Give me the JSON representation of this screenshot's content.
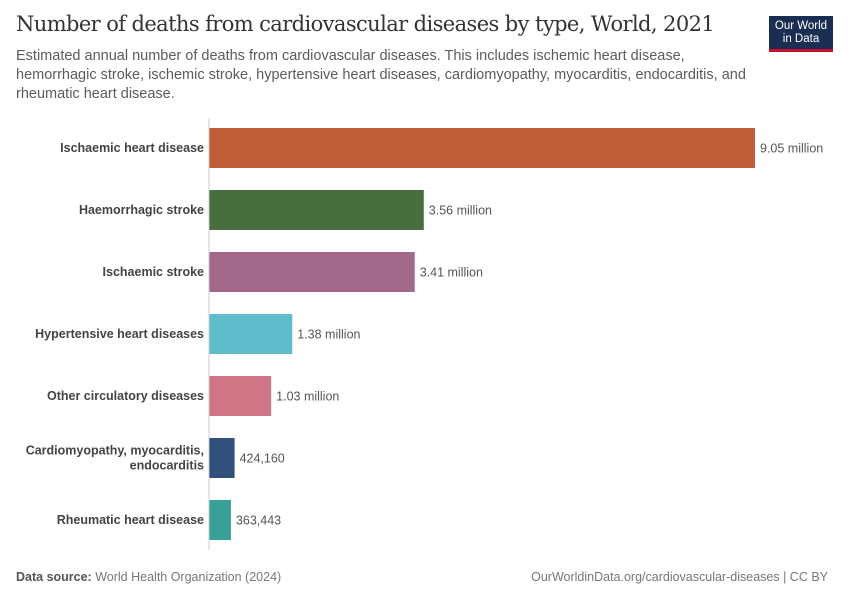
{
  "header": {
    "title": "Number of deaths from cardiovascular diseases by type, World, 2021",
    "subtitle": "Estimated annual number of deaths from cardiovascular diseases. This includes ischemic heart disease, hemorrhagic stroke, ischemic stroke, hypertensive heart diseases, cardiomyopathy, myocarditis, endocarditis, and rheumatic heart disease.",
    "logo_line1": "Our World",
    "logo_line2": "in Data"
  },
  "footer": {
    "source_label": "Data source:",
    "source_value": "World Health Organization (2024)",
    "url": "OurWorldinData.org/cardiovascular-diseases | CC BY"
  },
  "chart_data": {
    "type": "bar",
    "orientation": "horizontal",
    "title": "Number of deaths from cardiovascular diseases by type, World, 2021",
    "categories": [
      "Ischaemic heart disease",
      "Haemorrhagic stroke",
      "Ischaemic stroke",
      "Hypertensive heart diseases",
      "Other circulatory diseases",
      "Cardiomyopathy, myocarditis, endocarditis",
      "Rheumatic heart disease"
    ],
    "category_lines": [
      [
        "Ischaemic heart disease"
      ],
      [
        "Haemorrhagic stroke"
      ],
      [
        "Ischaemic stroke"
      ],
      [
        "Hypertensive heart diseases"
      ],
      [
        "Other circulatory diseases"
      ],
      [
        "Cardiomyopathy, myocarditis,",
        "endocarditis"
      ],
      [
        "Rheumatic heart disease"
      ]
    ],
    "values": [
      9050000,
      3560000,
      3410000,
      1380000,
      1030000,
      424160,
      363443
    ],
    "labels": [
      "9.05 million",
      "3.56 million",
      "3.41 million",
      "1.38 million",
      "1.03 million",
      "424,160",
      "363,443"
    ],
    "colors": [
      "#c15e3a",
      "#486d3e",
      "#a2698a",
      "#5fbccb",
      "#d07585",
      "#30507a",
      "#38a099"
    ],
    "xlim": [
      0,
      9050000
    ],
    "grid": false
  }
}
